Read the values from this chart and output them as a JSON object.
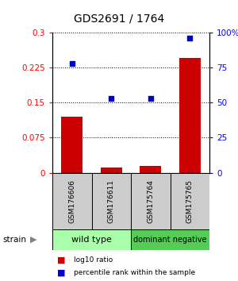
{
  "title": "GDS2691 / 1764",
  "samples": [
    "GSM176606",
    "GSM176611",
    "GSM175764",
    "GSM175765"
  ],
  "log10_ratio": [
    0.12,
    0.012,
    0.015,
    0.245
  ],
  "percentile_rank": [
    78,
    53,
    53,
    96
  ],
  "bar_color": "#cc0000",
  "dot_color": "#0000cc",
  "groups": [
    {
      "label": "wild type",
      "samples": [
        0,
        1
      ],
      "color": "#aaffaa"
    },
    {
      "label": "dominant negative",
      "samples": [
        2,
        3
      ],
      "color": "#55cc55"
    }
  ],
  "ylim_left": [
    0,
    0.3
  ],
  "ylim_right": [
    0,
    100
  ],
  "yticks_left": [
    0,
    0.075,
    0.15,
    0.225,
    0.3
  ],
  "ytick_labels_left": [
    "0",
    "0.075",
    "0.15",
    "0.225",
    "0.3"
  ],
  "yticks_right": [
    0,
    25,
    50,
    75,
    100
  ],
  "ytick_labels_right": [
    "0",
    "25",
    "50",
    "75",
    "100%"
  ],
  "legend_red": "log10 ratio",
  "legend_blue": "percentile rank within the sample",
  "strain_label": "strain",
  "background_color": "#ffffff",
  "gray_box_color": "#cccccc",
  "bar_width": 0.55,
  "dot_size": 20
}
